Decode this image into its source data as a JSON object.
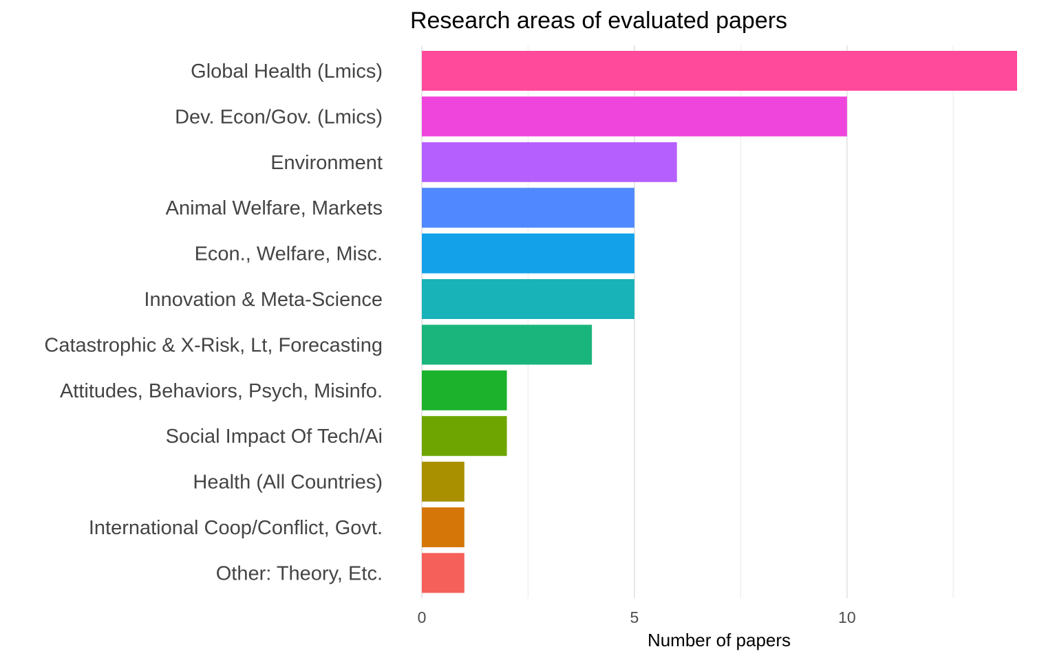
{
  "chart_data": {
    "type": "bar",
    "orientation": "horizontal",
    "title": "Research areas of evaluated papers",
    "xlabel": "Number of papers",
    "ylabel": "",
    "xlim": [
      0,
      14
    ],
    "x_ticks": [
      0,
      5,
      10
    ],
    "grid": true,
    "legend": "none",
    "categories": [
      "Global Health (Lmics)",
      "Dev. Econ/Gov. (Lmics)",
      "Environment",
      "Animal Welfare, Markets",
      "Econ., Welfare, Misc.",
      "Innovation & Meta-Science",
      "Catastrophic & X-Risk, Lt, Forecasting",
      "Attitudes, Behaviors, Psych, Misinfo.",
      "Social Impact Of Tech/Ai",
      "Health (All Countries)",
      "International Coop/Conflict, Govt.",
      "Other: Theory, Etc."
    ],
    "values": [
      14,
      10,
      6,
      5,
      5,
      5,
      4,
      2,
      2,
      1,
      1,
      1
    ],
    "colors": [
      "#FF4A9B",
      "#F045DC",
      "#B65FFF",
      "#5089FF",
      "#13A2EA",
      "#18B2B9",
      "#1AB57C",
      "#1CB22C",
      "#6EA500",
      "#A99000",
      "#D57708",
      "#F5605A"
    ]
  }
}
